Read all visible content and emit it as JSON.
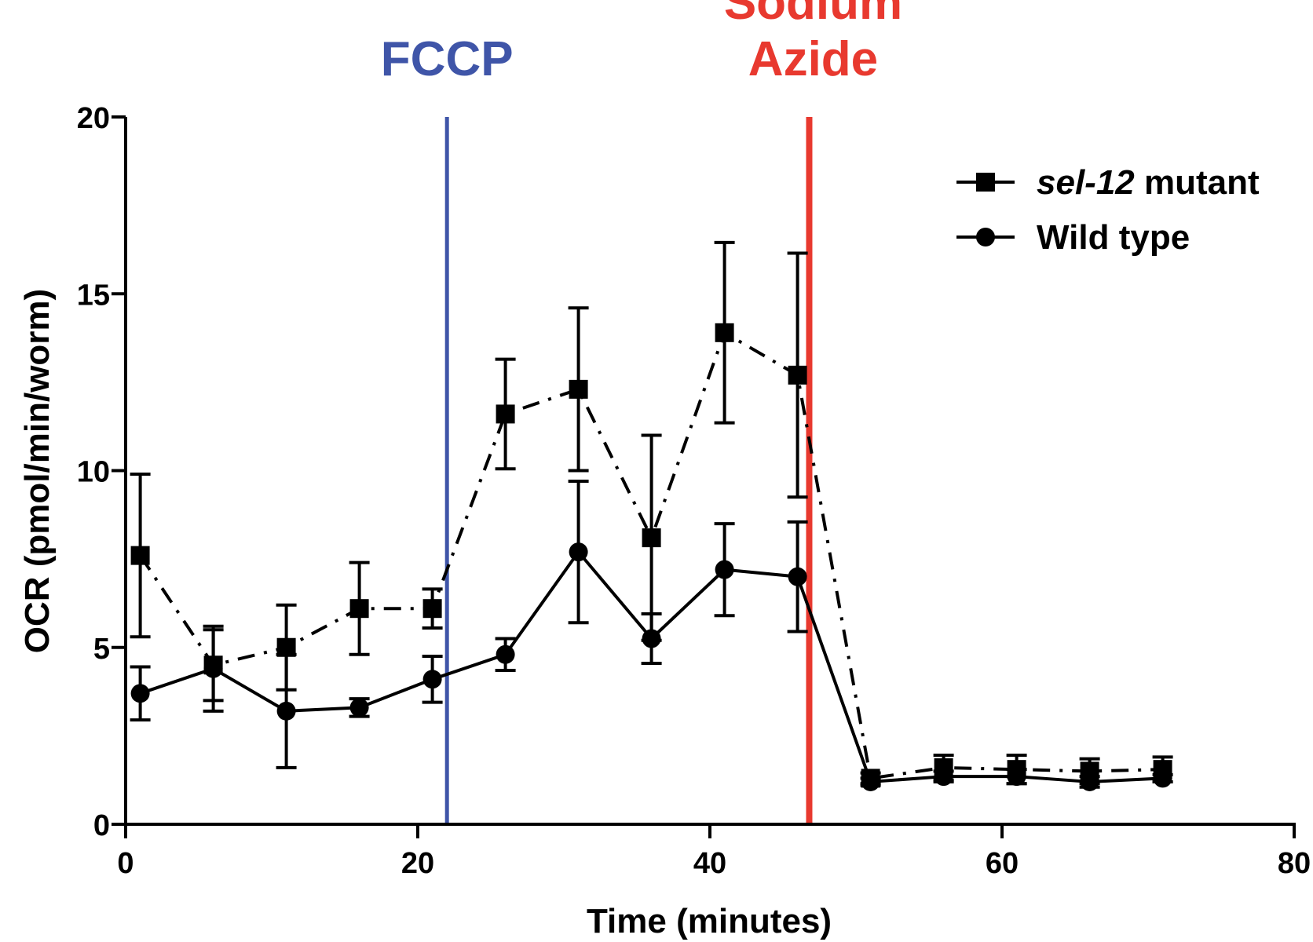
{
  "chart_data": {
    "type": "line",
    "title": "",
    "xlabel": "Time (minutes)",
    "ylabel": "OCR (pmol/min/worm)",
    "xlim": [
      0,
      80
    ],
    "ylim": [
      0,
      20
    ],
    "xticks": [
      "0",
      "20",
      "40",
      "60",
      "80"
    ],
    "yticks": [
      "0",
      "5",
      "10",
      "15",
      "20"
    ],
    "x": [
      1,
      6,
      11,
      16,
      21,
      26,
      31,
      36,
      41,
      46,
      51,
      56,
      61,
      66,
      71
    ],
    "series": [
      {
        "name": "sel-12 mutant",
        "name_italic": "sel-12",
        "name_rest": " mutant",
        "marker": "square",
        "line_style": "dash-dot",
        "color": "#000000",
        "values": [
          7.6,
          4.5,
          5.0,
          6.1,
          6.1,
          11.6,
          12.3,
          8.1,
          13.9,
          12.7,
          1.3,
          1.6,
          1.55,
          1.5,
          1.55
        ],
        "errors": [
          2.3,
          1.0,
          1.2,
          1.3,
          0.55,
          1.55,
          2.3,
          2.9,
          2.55,
          3.45,
          0.15,
          0.35,
          0.4,
          0.35,
          0.35
        ]
      },
      {
        "name": "Wild type",
        "marker": "circle",
        "line_style": "solid",
        "color": "#000000",
        "values": [
          3.7,
          4.4,
          3.2,
          3.3,
          4.1,
          4.8,
          7.7,
          5.25,
          7.2,
          7.0,
          1.2,
          1.35,
          1.35,
          1.2,
          1.3
        ],
        "errors": [
          0.75,
          1.2,
          1.6,
          0.25,
          0.65,
          0.45,
          2.0,
          0.7,
          1.3,
          1.55,
          0.1,
          0.15,
          0.2,
          0.15,
          0.1
        ]
      }
    ],
    "annotations": [
      {
        "label": "FCCP",
        "lines": [
          "FCCP"
        ],
        "x": 22,
        "color": "#3f55a8"
      },
      {
        "label": "Sodium Azide",
        "lines": [
          "Sodium",
          "Azide"
        ],
        "x": 46.8,
        "color": "#e8392f"
      }
    ],
    "legend_position": "top-right",
    "grid": false
  }
}
